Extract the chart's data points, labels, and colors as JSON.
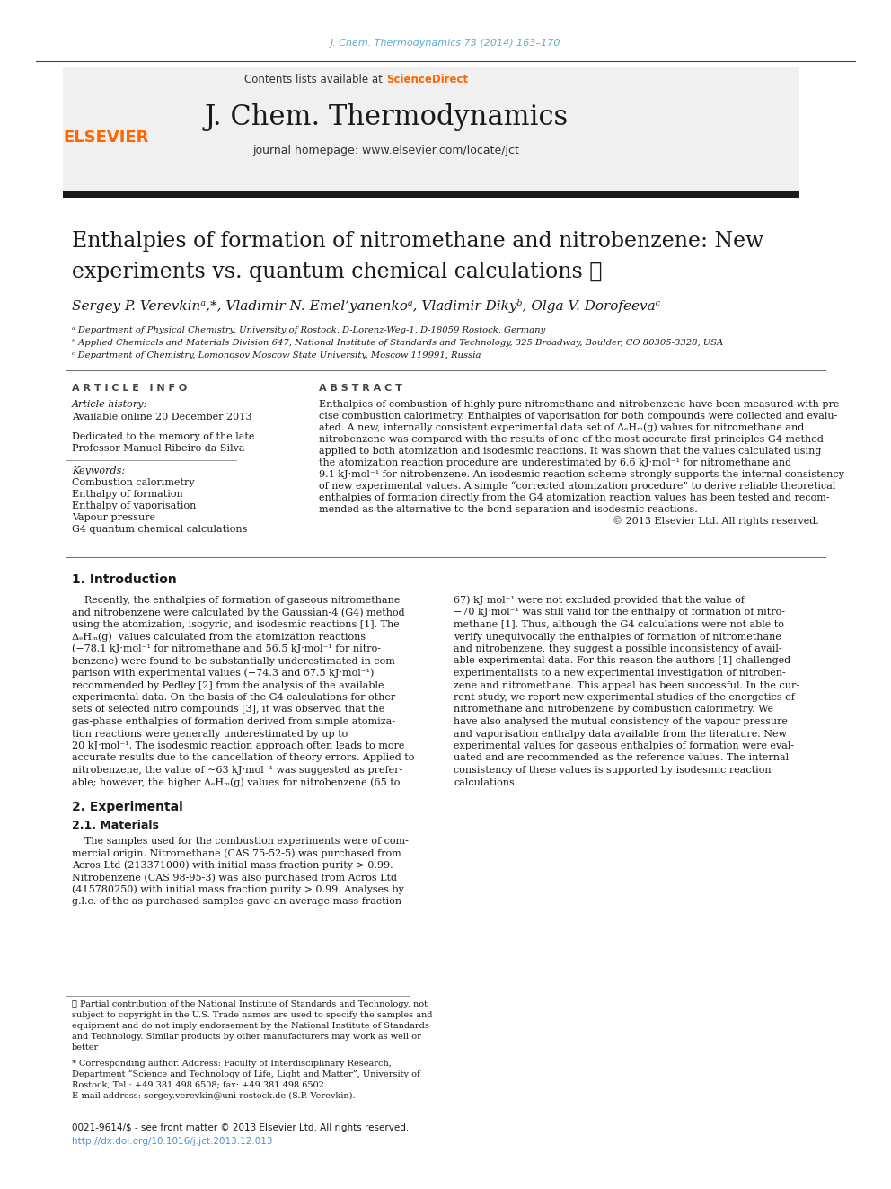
{
  "page_citation": "J. Chem. Thermodynamics 73 (2014) 163–170",
  "journal_name": "J. Chem. Thermodynamics",
  "journal_homepage": "journal homepage: www.elsevier.com/locate/jct",
  "paper_title_line1": "Enthalpies of formation of nitromethane and nitrobenzene: New",
  "paper_title_line2": "experiments vs. quantum chemical calculations ☆",
  "authors_str": "Sergey P. Verevkinᵃ,*, Vladimir N. Emel’yanenkoᵃ, Vladimir Dikyᵇ, Olga V. Dorofeevaᶜ",
  "affil_a": "ᵃ Department of Physical Chemistry, University of Rostock, D-Lorenz-Weg-1, D-18059 Rostock, Germany",
  "affil_b": "ᵇ Applied Chemicals and Materials Division 647, National Institute of Standards and Technology, 325 Broadway, Boulder, CO 80305-3328, USA",
  "affil_c": "ᶜ Department of Chemistry, Lomonosov Moscow State University, Moscow 119991, Russia",
  "article_info_header": "A R T I C L E   I N F O",
  "article_history_label": "Article history:",
  "article_available": "Available online 20 December 2013",
  "dedicated_line1": "Dedicated to the memory of the late",
  "dedicated_line2": "Professor Manuel Ribeiro da Silva",
  "keywords_label": "Keywords:",
  "keywords": [
    "Combustion calorimetry",
    "Enthalpy of formation",
    "Enthalpy of vaporisation",
    "Vapour pressure",
    "G4 quantum chemical calculations"
  ],
  "abstract_header": "A B S T R A C T",
  "abstract_lines": [
    "Enthalpies of combustion of highly pure nitromethane and nitrobenzene have been measured with pre-",
    "cise combustion calorimetry. Enthalpies of vaporisation for both compounds were collected and evalu-",
    "ated. A new, internally consistent experimental data set of ΔₑHₘ(g) values for nitromethane and",
    "nitrobenzene was compared with the results of one of the most accurate first-principles G4 method",
    "applied to both atomization and isodesmic reactions. It was shown that the values calculated using",
    "the atomization reaction procedure are underestimated by 6.6 kJ·mol⁻¹ for nitromethane and",
    "9.1 kJ·mol⁻¹ for nitrobenzene. An isodesmic reaction scheme strongly supports the internal consistency",
    "of new experimental values. A simple “corrected atomization procedure” to derive reliable theoretical",
    "enthalpies of formation directly from the G4 atomization reaction values has been tested and recom-",
    "mended as the alternative to the bond separation and isodesmic reactions."
  ],
  "abstract_copyright": "© 2013 Elsevier Ltd. All rights reserved.",
  "section1_header": "1. Introduction",
  "intro_left": [
    "    Recently, the enthalpies of formation of gaseous nitromethane",
    "and nitrobenzene were calculated by the Gaussian-4 (G4) method",
    "using the atomization, isogyric, and isodesmic reactions [1]. The",
    "ΔₑHₘ(g)  values calculated from the atomization reactions",
    "(−78.1 kJ·mol⁻¹ for nitromethane and 56.5 kJ·mol⁻¹ for nitro-",
    "benzene) were found to be substantially underestimated in com-",
    "parison with experimental values (−74.3 and 67.5 kJ·mol⁻¹)",
    "recommended by Pedley [2] from the analysis of the available",
    "experimental data. On the basis of the G4 calculations for other",
    "sets of selected nitro compounds [3], it was observed that the",
    "gas-phase enthalpies of formation derived from simple atomiza-",
    "tion reactions were generally underestimated by up to",
    "20 kJ·mol⁻¹. The isodesmic reaction approach often leads to more",
    "accurate results due to the cancellation of theory errors. Applied to",
    "nitrobenzene, the value of ∼63 kJ·mol⁻¹ was suggested as prefer-",
    "able; however, the higher ΔₑHₘ(g) values for nitrobenzene (65 to"
  ],
  "intro_right": [
    "67) kJ·mol⁻¹ were not excluded provided that the value of",
    "−70 kJ·mol⁻¹ was still valid for the enthalpy of formation of nitro-",
    "methane [1]. Thus, although the G4 calculations were not able to",
    "verify unequivocally the enthalpies of formation of nitromethane",
    "and nitrobenzene, they suggest a possible inconsistency of avail-",
    "able experimental data. For this reason the authors [1] challenged",
    "experimentalists to a new experimental investigation of nitroben-",
    "zene and nitromethane. This appeal has been successful. In the cur-",
    "rent study, we report new experimental studies of the energetics of",
    "nitromethane and nitrobenzene by combustion calorimetry. We",
    "have also analysed the mutual consistency of the vapour pressure",
    "and vaporisation enthalpy data available from the literature. New",
    "experimental values for gaseous enthalpies of formation were eval-",
    "uated and are recommended as the reference values. The internal",
    "consistency of these values is supported by isodesmic reaction",
    "calculations."
  ],
  "section2_header": "2. Experimental",
  "section21_header": "2.1. Materials",
  "materials_left": [
    "    The samples used for the combustion experiments were of com-",
    "mercial origin. Nitromethane (CAS 75-52-5) was purchased from",
    "Acros Ltd (213371000) with initial mass fraction purity > 0.99.",
    "Nitrobenzene (CAS 98-95-3) was also purchased from Acros Ltd",
    "(415780250) with initial mass fraction purity > 0.99. Analyses by",
    "g.l.c. of the as-purchased samples gave an average mass fraction"
  ],
  "footnote_lines": [
    "☆ Partial contribution of the National Institute of Standards and Technology, not",
    "subject to copyright in the U.S. Trade names are used to specify the samples and",
    "equipment and do not imply endorsement by the National Institute of Standards",
    "and Technology. Similar products by other manufacturers may work as well or",
    "better"
  ],
  "footnote2_lines": [
    "* Corresponding author. Address: Faculty of Interdisciplinary Research,",
    "Department “Science and Technology of Life, Light and Matter”, University of",
    "Rostock, Tel.: +49 381 498 6508; fax: +49 381 498 6502."
  ],
  "footnote3": "E-mail address: sergey.verevkin@uni-rostock.de (S.P. Verevkin).",
  "issn_line": "0021-9614/$ - see front matter © 2013 Elsevier Ltd. All rights reserved.",
  "doi_line": "http://dx.doi.org/10.1016/j.jct.2013.12.013",
  "elsevier_color": "#FF6600",
  "link_color": "#4A90D9",
  "citation_color": "#5AAFCF",
  "header_bg_color": "#F0F0F0",
  "black_bar_color": "#1A1A1A"
}
